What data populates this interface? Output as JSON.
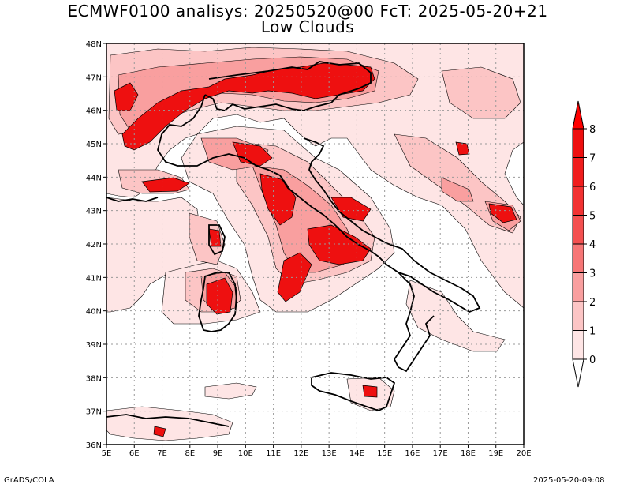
{
  "title": {
    "line1": "ECMWF0100 analisys: 20250520@00 FcT: 2025-05-20+21",
    "line2": "Low Clouds"
  },
  "footer": {
    "left": "GrADS/COLA",
    "right": "2025-05-20-09:08"
  },
  "map": {
    "lon_range": [
      5,
      20
    ],
    "lat_range": [
      36,
      48
    ],
    "lon_labels": [
      "5E",
      "6E",
      "7E",
      "8E",
      "9E",
      "10E",
      "11E",
      "12E",
      "13E",
      "14E",
      "15E",
      "16E",
      "17E",
      "18E",
      "19E",
      "20E"
    ],
    "lat_labels": [
      "36N",
      "37N",
      "38N",
      "39N",
      "40N",
      "41N",
      "42N",
      "43N",
      "44N",
      "45N",
      "46N",
      "47N",
      "48N"
    ],
    "grid": "dotted",
    "colorbar": {
      "labels": [
        "0",
        "1",
        "2",
        "3",
        "4",
        "5",
        "6",
        "7",
        "8"
      ],
      "colors": [
        "#fee5e5",
        "#fcc5c5",
        "#f99f9f",
        "#f67676",
        "#f45050",
        "#f23232",
        "#f01d1d",
        "#ee0f0f"
      ],
      "arrow_color_top": "#ff0000",
      "arrow_color_bottom": "#ffffff"
    }
  }
}
